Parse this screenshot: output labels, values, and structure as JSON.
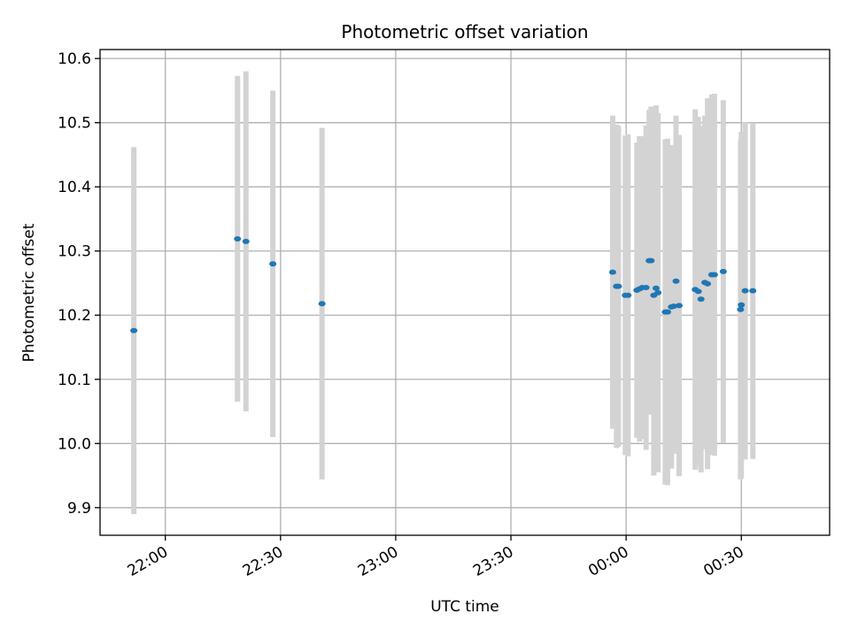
{
  "chart_data": {
    "type": "scatter",
    "title": "Photometric offset variation",
    "xlabel": "UTC time",
    "ylabel": "Photometric offset",
    "x_unit": "UTC time (HH:MM)",
    "xlim": [
      "21:43",
      "00:53"
    ],
    "ylim": [
      9.857,
      10.614
    ],
    "x_ticks": [
      "22:00",
      "22:30",
      "23:00",
      "23:30",
      "00:00",
      "00:30"
    ],
    "y_ticks": [
      9.9,
      10.0,
      10.1,
      10.2,
      10.3,
      10.4,
      10.5,
      10.6
    ],
    "y_tick_labels": [
      "9.9",
      "10.0",
      "10.1",
      "10.2",
      "10.3",
      "10.4",
      "10.5",
      "10.6"
    ],
    "grid": true,
    "legend": false,
    "colors": {
      "point": "#1f77b4",
      "errorbar": "#d3d3d3",
      "grid": "#b0b0b0"
    },
    "points": [
      {
        "x": "21:51.8",
        "y": 10.176,
        "yerr": 0.286
      },
      {
        "x": "22:18.8",
        "y": 10.319,
        "yerr": 0.254
      },
      {
        "x": "22:21.0",
        "y": 10.315,
        "yerr": 0.265
      },
      {
        "x": "22:28.0",
        "y": 10.28,
        "yerr": 0.27
      },
      {
        "x": "22:40.8",
        "y": 10.218,
        "yerr": 0.274
      },
      {
        "x": "23:56.5",
        "y": 10.267,
        "yerr": 0.244
      },
      {
        "x": "23:57.5",
        "y": 10.245,
        "yerr": 0.252
      },
      {
        "x": "23:58.0",
        "y": 10.245,
        "yerr": 0.25
      },
      {
        "x": "23:59.8",
        "y": 10.231,
        "yerr": 0.249
      },
      {
        "x": "00:00.5",
        "y": 10.231,
        "yerr": 0.251
      },
      {
        "x": "00:02.8",
        "y": 10.239,
        "yerr": 0.23
      },
      {
        "x": "00:03.5",
        "y": 10.241,
        "yerr": 0.238
      },
      {
        "x": "00:04.2",
        "y": 10.243,
        "yerr": 0.236
      },
      {
        "x": "00:05.2",
        "y": 10.243,
        "yerr": 0.253
      },
      {
        "x": "00:06.0",
        "y": 10.285,
        "yerr": 0.235
      },
      {
        "x": "00:06.5",
        "y": 10.285,
        "yerr": 0.24
      },
      {
        "x": "00:07.2",
        "y": 10.231,
        "yerr": 0.281
      },
      {
        "x": "00:07.8",
        "y": 10.242,
        "yerr": 0.285
      },
      {
        "x": "00:08.3",
        "y": 10.235,
        "yerr": 0.28
      },
      {
        "x": "00:10.2",
        "y": 10.205,
        "yerr": 0.269
      },
      {
        "x": "00:10.8",
        "y": 10.205,
        "yerr": 0.27
      },
      {
        "x": "00:11.8",
        "y": 10.213,
        "yerr": 0.252
      },
      {
        "x": "00:12.4",
        "y": 10.214,
        "yerr": 0.23
      },
      {
        "x": "00:13.0",
        "y": 10.253,
        "yerr": 0.258
      },
      {
        "x": "00:13.8",
        "y": 10.215,
        "yerr": 0.266
      },
      {
        "x": "00:18.0",
        "y": 10.24,
        "yerr": 0.281
      },
      {
        "x": "00:18.8",
        "y": 10.237,
        "yerr": 0.272
      },
      {
        "x": "00:19.5",
        "y": 10.225,
        "yerr": 0.27
      },
      {
        "x": "00:20.5",
        "y": 10.251,
        "yerr": 0.26
      },
      {
        "x": "00:21.2",
        "y": 10.249,
        "yerr": 0.289
      },
      {
        "x": "00:22.3",
        "y": 10.263,
        "yerr": 0.281
      },
      {
        "x": "00:23.0",
        "y": 10.263,
        "yerr": 0.282
      },
      {
        "x": "00:25.3",
        "y": 10.268,
        "yerr": 0.267
      },
      {
        "x": "00:29.8",
        "y": 10.209,
        "yerr": 0.265
      },
      {
        "x": "00:30.0",
        "y": 10.216,
        "yerr": 0.27
      },
      {
        "x": "00:31.0",
        "y": 10.238,
        "yerr": 0.263
      },
      {
        "x": "00:33.0",
        "y": 10.238,
        "yerr": 0.262
      }
    ]
  }
}
